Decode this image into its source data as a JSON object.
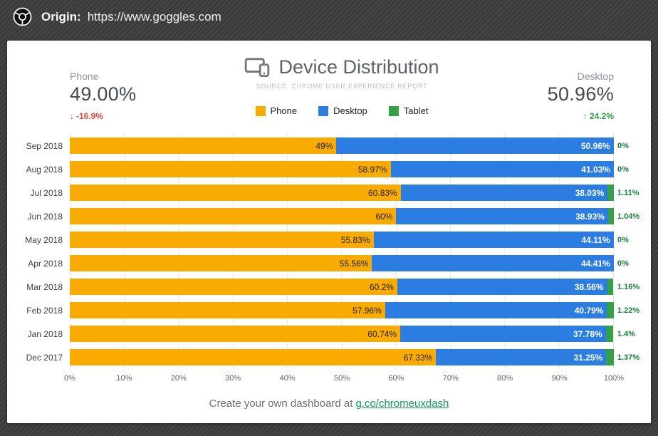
{
  "origin_bar": {
    "label": "Origin:",
    "url": "https://www.goggles.com"
  },
  "stats": {
    "phone": {
      "label": "Phone",
      "value": "49.00%",
      "arrow": "↓",
      "delta": "-16.9%",
      "delta_color": "#e0443a"
    },
    "desktop": {
      "label": "Desktop",
      "value": "50.96%",
      "arrow": "↑",
      "delta": "24.2%",
      "delta_color": "#2f9e44"
    }
  },
  "title": "Device Distribution",
  "subtitle": "SOURCE: CHROME USER EXPERIENCE REPORT",
  "legend": [
    {
      "label": "Phone",
      "color": "#F9AB00"
    },
    {
      "label": "Desktop",
      "color": "#2B7DE1"
    },
    {
      "label": "Tablet",
      "color": "#34A047"
    }
  ],
  "footer": {
    "text": "Create your own dashboard at",
    "link": "g.co/chromeuxdash",
    "link_color": "#0f9d58"
  },
  "chart_data": {
    "type": "bar",
    "stacked": true,
    "orientation": "horizontal",
    "title": "Device Distribution",
    "subtitle": "SOURCE: CHROME USER EXPERIENCE REPORT",
    "legend_position": "top-center",
    "grid": true,
    "xlim": [
      0,
      100
    ],
    "x_ticks": [
      "0%",
      "10%",
      "20%",
      "30%",
      "40%",
      "50%",
      "60%",
      "70%",
      "80%",
      "90%",
      "100%"
    ],
    "categories": [
      "Sep 2018",
      "Aug 2018",
      "Jul 2018",
      "Jun 2018",
      "May 2018",
      "Apr 2018",
      "Mar 2018",
      "Feb 2018",
      "Jan 2018",
      "Dec 2017"
    ],
    "series": [
      {
        "name": "Phone",
        "color": "#F9AB00",
        "label_color": "#1f1f1f",
        "values": [
          49,
          58.97,
          60.83,
          60,
          55.83,
          55.56,
          60.2,
          57.96,
          60.74,
          67.33
        ],
        "labels": [
          "49%",
          "58.97%",
          "60.83%",
          "60%",
          "55.83%",
          "55.56%",
          "60.2%",
          "57.96%",
          "60.74%",
          "67.33%"
        ]
      },
      {
        "name": "Desktop",
        "color": "#2B7DE1",
        "label_color": "#ffffff",
        "values": [
          50.96,
          41.03,
          38.03,
          38.93,
          44.11,
          44.41,
          38.56,
          40.79,
          37.78,
          31.25
        ],
        "labels": [
          "50.96%",
          "41.03%",
          "38.03%",
          "38.93%",
          "44.11%",
          "44.41%",
          "38.56%",
          "40.79%",
          "37.78%",
          "31.25%"
        ]
      },
      {
        "name": "Tablet",
        "color": "#34A047",
        "label_color": "#188038",
        "values": [
          0,
          0,
          1.11,
          1.04,
          0,
          0,
          1.16,
          1.22,
          1.4,
          1.37
        ],
        "labels": [
          "0%",
          "0%",
          "1.11%",
          "1.04%",
          "0%",
          "0%",
          "1.16%",
          "1.22%",
          "1.4%",
          "1.37%"
        ]
      }
    ]
  }
}
